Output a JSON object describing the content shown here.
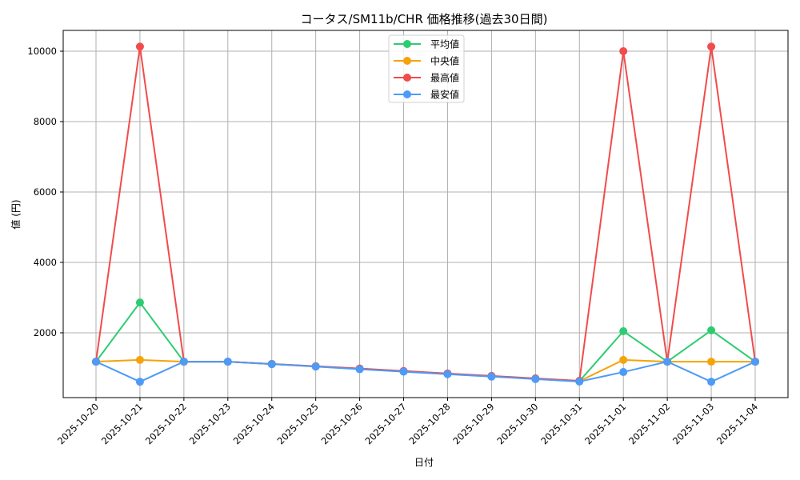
{
  "chart_data": {
    "type": "line",
    "title": "コータス/SM11b/CHR 価格推移(過去30日間)",
    "xlabel": "日付",
    "ylabel": "値 (円)",
    "categories": [
      "2025-10-20",
      "2025-10-21",
      "2025-10-22",
      "2025-10-23",
      "2025-10-24",
      "2025-10-25",
      "2025-10-26",
      "2025-10-27",
      "2025-10-28",
      "2025-10-29",
      "2025-10-30",
      "2025-10-31",
      "2025-11-01",
      "2025-11-02",
      "2025-11-03",
      "2025-11-04"
    ],
    "series": [
      {
        "name": "平均値",
        "color": "#2ecc71",
        "values": [
          1180,
          2860,
          1180,
          1180,
          1115,
          1045,
          975,
          905,
          835,
          765,
          695,
          625,
          2045,
          1180,
          2070,
          1180
        ]
      },
      {
        "name": "中央値",
        "color": "#f5a30a",
        "values": [
          1180,
          1230,
          1180,
          1180,
          1115,
          1045,
          975,
          905,
          835,
          765,
          695,
          625,
          1230,
          1180,
          1180,
          1180
        ]
      },
      {
        "name": "最高値",
        "color": "#f24b4b",
        "values": [
          1180,
          10130,
          1180,
          1180,
          1115,
          1050,
          985,
          915,
          845,
          775,
          705,
          635,
          10000,
          1180,
          10130,
          1180
        ]
      },
      {
        "name": "最安値",
        "color": "#4d9bf7",
        "values": [
          1180,
          610,
          1180,
          1180,
          1110,
          1040,
          965,
          895,
          825,
          755,
          685,
          615,
          885,
          1180,
          610,
          1180
        ]
      }
    ],
    "yticks": [
      2000,
      4000,
      6000,
      8000,
      10000
    ],
    "ylim": [
      160,
      10600
    ],
    "grid": true,
    "legend_position": "upper center",
    "marker": "circle"
  }
}
